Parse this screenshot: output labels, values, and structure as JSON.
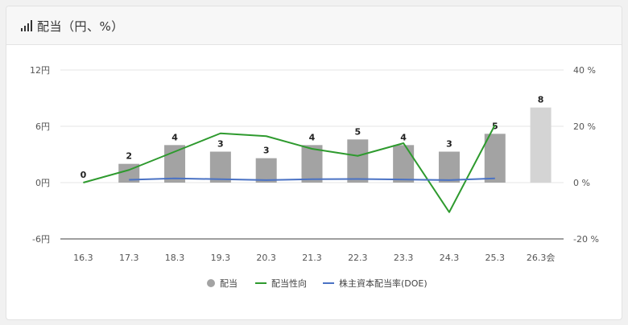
{
  "header": {
    "title": "配当（円、%）",
    "icon": "signal-bars-icon"
  },
  "chart_data": {
    "type": "bar",
    "categories": [
      "16.3",
      "17.3",
      "18.3",
      "19.3",
      "20.3",
      "21.3",
      "22.3",
      "23.3",
      "24.3",
      "25.3",
      "26.3会"
    ],
    "series": [
      {
        "name": "配当",
        "kind": "bar",
        "axis": "left",
        "values": [
          0,
          2,
          4,
          3.3,
          2.6,
          4,
          4.6,
          4,
          3.3,
          5.2,
          8
        ],
        "labels": [
          "0",
          "2",
          "4",
          "3",
          "3",
          "4",
          "5",
          "4",
          "3",
          "5",
          "8"
        ],
        "color": "#a3a3a3",
        "forecast_color": "#d4d4d4"
      },
      {
        "name": "配当性向",
        "kind": "line",
        "axis": "right",
        "values": [
          0,
          4.5,
          11,
          17.5,
          16.5,
          12,
          9.5,
          14,
          -10.5,
          20.5,
          null
        ],
        "color": "#2e9a2e"
      },
      {
        "name": "株主資本配当率(DOE)",
        "kind": "line",
        "axis": "right",
        "values": [
          null,
          1,
          1.5,
          1.2,
          0.9,
          1.2,
          1.3,
          1.1,
          0.9,
          1.5,
          null
        ],
        "color": "#4a72c4"
      }
    ],
    "y_left": {
      "ticks": [
        "12円",
        "6円",
        "0円",
        "-6円"
      ],
      "min": -6,
      "max": 12
    },
    "y_right": {
      "ticks": [
        "40 %",
        "20 %",
        "0 %",
        "-20 %"
      ],
      "min": -20,
      "max": 40
    },
    "grid": true,
    "legend": "bottom"
  }
}
